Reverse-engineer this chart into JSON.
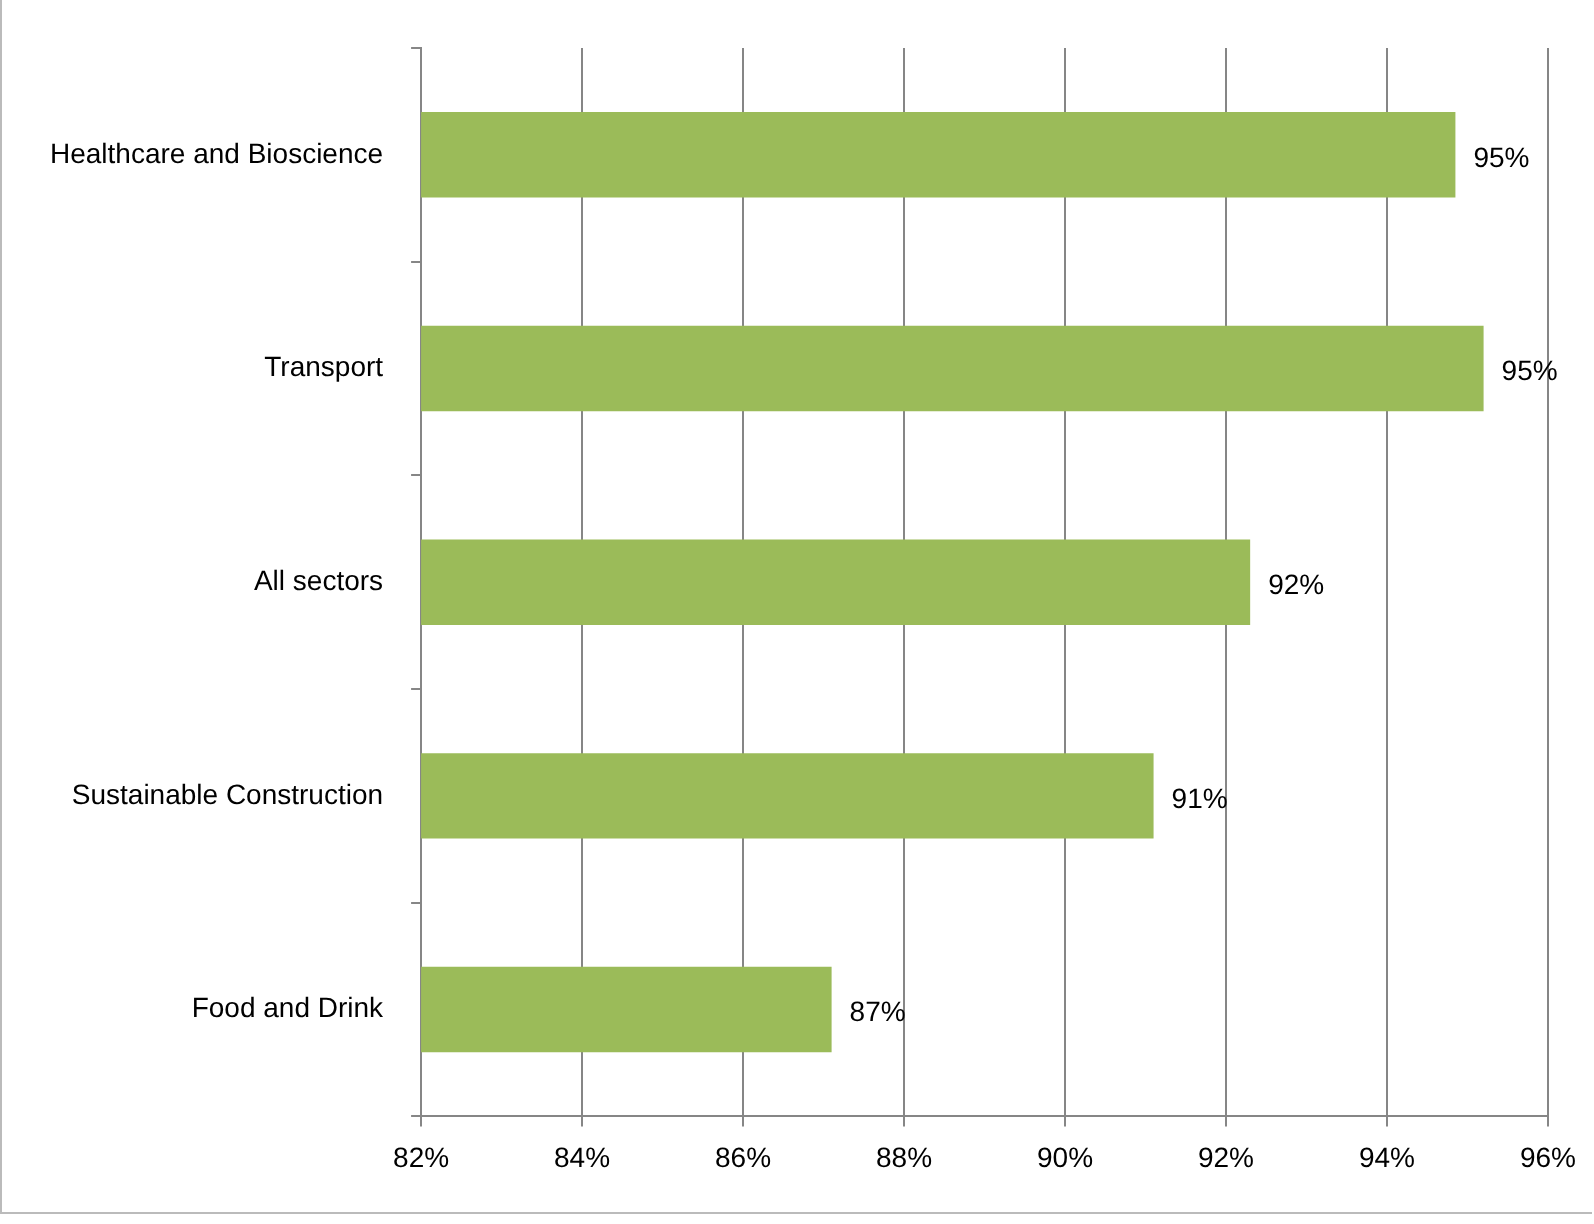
{
  "chart_data": {
    "type": "bar",
    "orientation": "horizontal",
    "categories": [
      "Healthcare and Bioscience",
      "Transport",
      "All sectors",
      "Sustainable Construction",
      "Food and Drink"
    ],
    "values": [
      94.85,
      95.2,
      92.3,
      91.1,
      87.1
    ],
    "color": "#9bbb59",
    "value_labels": [
      "95%",
      "95%",
      "92%",
      "91%",
      "87%"
    ],
    "xlim": [
      82,
      96
    ],
    "xticks": [
      {
        "value": 82,
        "label": "82%"
      },
      {
        "value": 84,
        "label": "84%"
      },
      {
        "value": 86,
        "label": "86%"
      },
      {
        "value": 88,
        "label": "88%"
      },
      {
        "value": 90,
        "label": "90%"
      },
      {
        "value": 92,
        "label": "92%"
      },
      {
        "value": 94,
        "label": "94%"
      },
      {
        "value": 96,
        "label": "96%"
      }
    ],
    "grid": "x",
    "legend": false
  }
}
